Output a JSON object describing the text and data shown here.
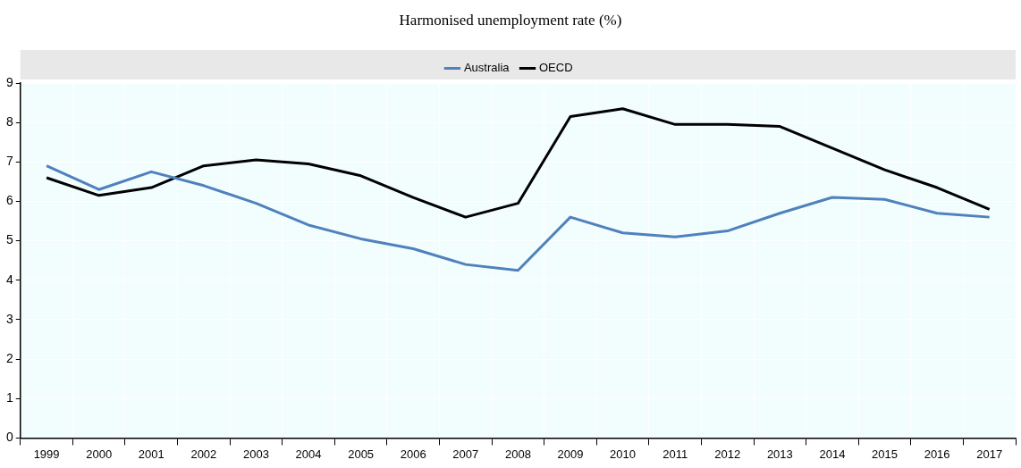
{
  "chart_data": {
    "type": "line",
    "title": "Harmonised unemployment rate (%)",
    "categories": [
      "1999",
      "2000",
      "2001",
      "2002",
      "2003",
      "2004",
      "2005",
      "2006",
      "2007",
      "2008",
      "2009",
      "2010",
      "2011",
      "2012",
      "2013",
      "2014",
      "2015",
      "2016",
      "2017"
    ],
    "series": [
      {
        "name": "Australia",
        "color": "#4f81bd",
        "values": [
          6.9,
          6.3,
          6.75,
          6.4,
          5.95,
          5.4,
          5.05,
          4.8,
          4.4,
          4.25,
          5.6,
          5.2,
          5.1,
          5.25,
          5.7,
          6.1,
          6.05,
          5.7,
          5.6
        ]
      },
      {
        "name": "OECD",
        "color": "#000000",
        "values": [
          6.6,
          6.15,
          6.35,
          6.9,
          7.05,
          6.95,
          6.65,
          6.1,
          5.6,
          5.95,
          8.15,
          8.35,
          7.95,
          7.95,
          7.9,
          7.35,
          6.8,
          6.35,
          5.8
        ]
      }
    ],
    "ylim": [
      0,
      9
    ],
    "yticks": [
      0,
      1,
      2,
      3,
      4,
      5,
      6,
      7,
      8,
      9
    ],
    "grid": true,
    "legend": "top",
    "marker": "none",
    "line_style": "solid"
  }
}
